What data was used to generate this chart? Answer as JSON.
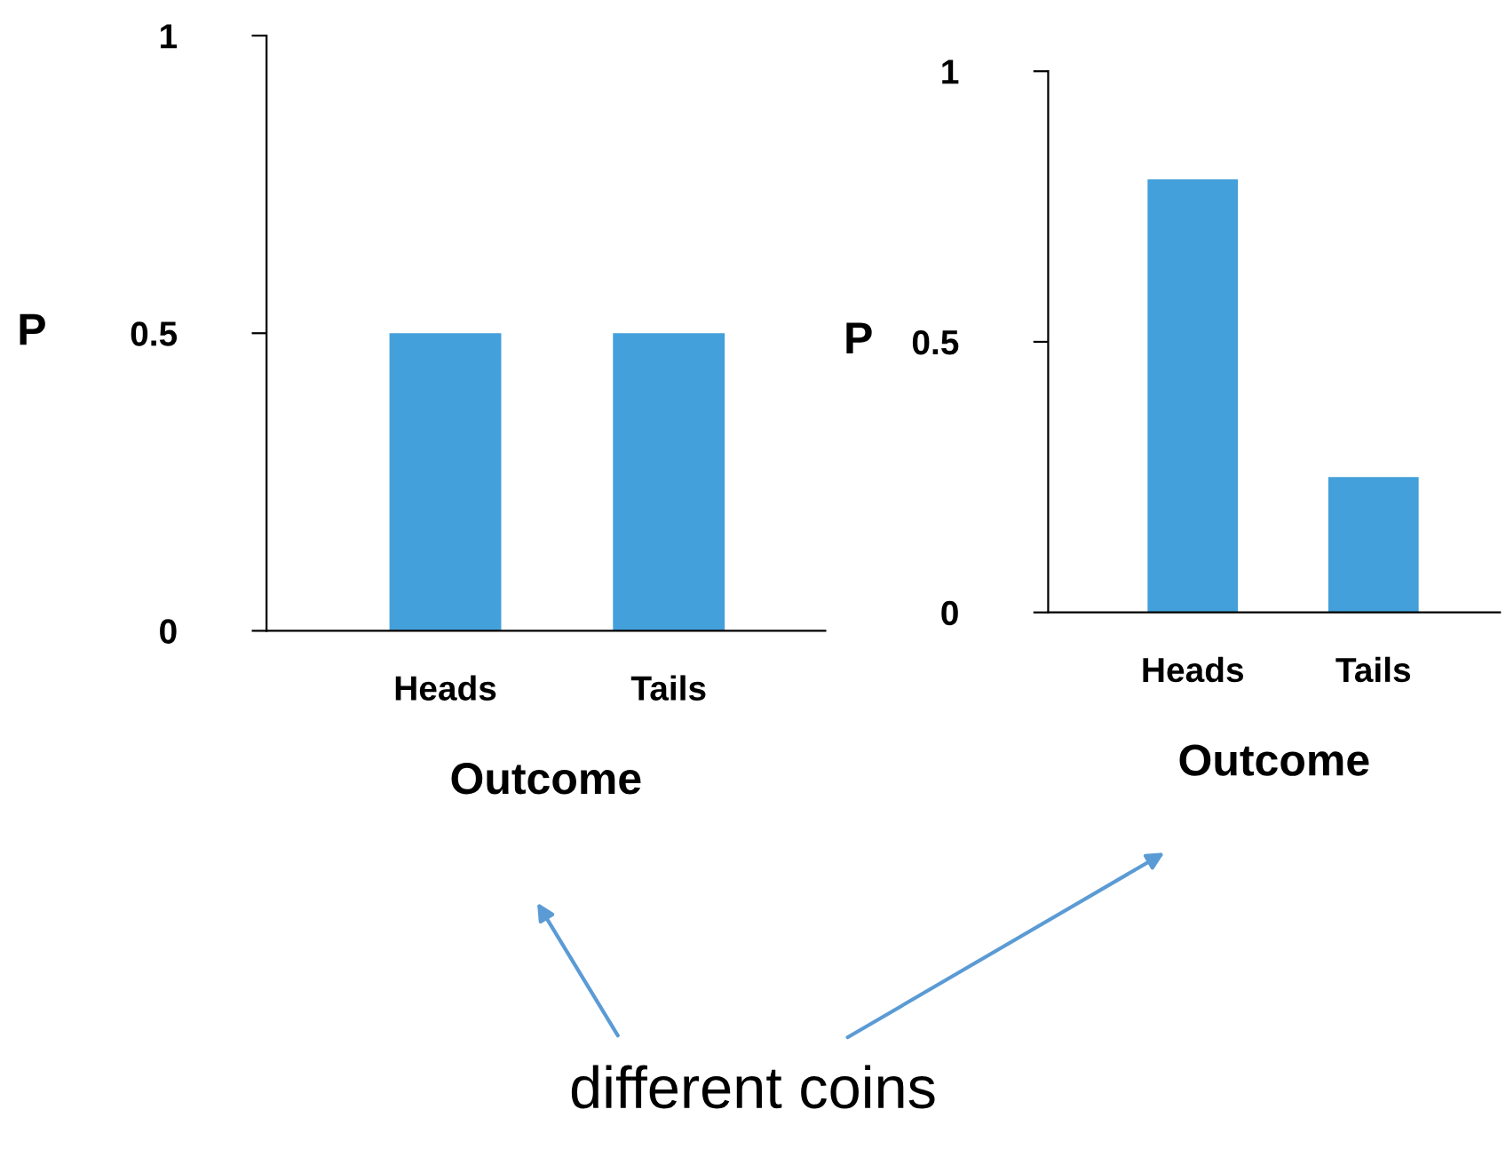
{
  "chart_data": [
    {
      "type": "bar",
      "categories": [
        "Heads",
        "Tails"
      ],
      "values": [
        0.5,
        0.5
      ],
      "color": "#43a0db",
      "xlabel": "Outcome",
      "ylabel": "P",
      "ylim": [
        0,
        1
      ],
      "yticks": [
        0,
        0.5,
        1
      ],
      "grid": false,
      "legend": false,
      "annotations": [
        "different coins"
      ]
    },
    {
      "type": "bar",
      "categories": [
        "Heads",
        "Tails"
      ],
      "values": [
        0.8,
        0.25
      ],
      "color": "#43a0db",
      "xlabel": "Outcome",
      "ylabel": "P",
      "ylim": [
        0,
        1
      ],
      "yticks": [
        0,
        0.5,
        1
      ],
      "grid": false,
      "legend": false
    }
  ]
}
